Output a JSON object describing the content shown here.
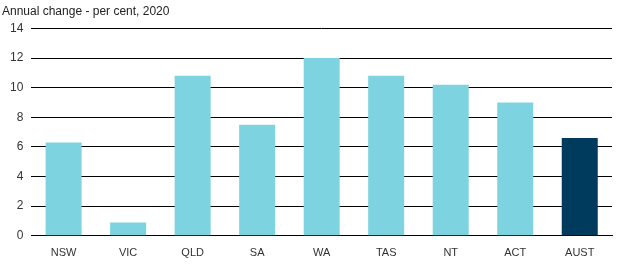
{
  "chart_data": {
    "type": "bar",
    "title": "Annual change - per cent, 2020",
    "categories": [
      "NSW",
      "VIC",
      "QLD",
      "SA",
      "WA",
      "TAS",
      "NT",
      "ACT",
      "AUST"
    ],
    "values": [
      6.3,
      0.9,
      10.8,
      7.5,
      12.0,
      10.8,
      10.2,
      9.0,
      6.6
    ],
    "colors": [
      "#7dd3e0",
      "#7dd3e0",
      "#7dd3e0",
      "#7dd3e0",
      "#7dd3e0",
      "#7dd3e0",
      "#7dd3e0",
      "#7dd3e0",
      "#003a5c"
    ],
    "ylim": [
      0,
      14
    ],
    "yticks": [
      0,
      2,
      4,
      6,
      8,
      10,
      12,
      14
    ],
    "grid": true
  }
}
